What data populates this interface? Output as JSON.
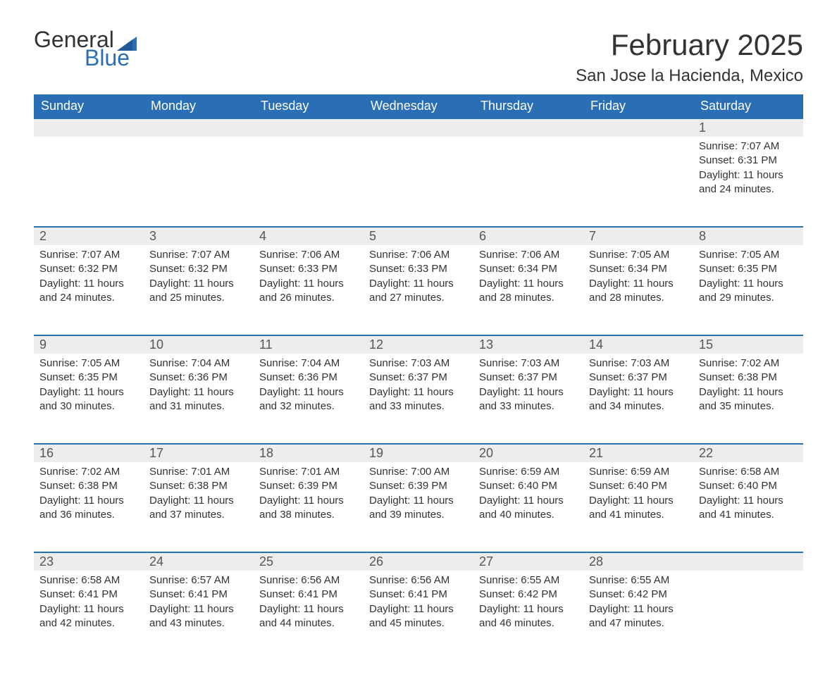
{
  "logo": {
    "text_general": "General",
    "text_blue": "Blue",
    "flag_color": "#2a6fb5"
  },
  "title": "February 2025",
  "location": "San Jose la Hacienda, Mexico",
  "colors": {
    "header_bg": "#2a6fb5",
    "header_text": "#ffffff",
    "daynum_bg": "#ededed",
    "row_border": "#2a6fb5",
    "body_text": "#333333"
  },
  "weekdays": [
    "Sunday",
    "Monday",
    "Tuesday",
    "Wednesday",
    "Thursday",
    "Friday",
    "Saturday"
  ],
  "labels": {
    "sunrise": "Sunrise: ",
    "sunset": "Sunset: ",
    "daylight": "Daylight: "
  },
  "weeks": [
    [
      null,
      null,
      null,
      null,
      null,
      null,
      {
        "n": "1",
        "sunrise": "7:07 AM",
        "sunset": "6:31 PM",
        "daylight": "11 hours and 24 minutes."
      }
    ],
    [
      {
        "n": "2",
        "sunrise": "7:07 AM",
        "sunset": "6:32 PM",
        "daylight": "11 hours and 24 minutes."
      },
      {
        "n": "3",
        "sunrise": "7:07 AM",
        "sunset": "6:32 PM",
        "daylight": "11 hours and 25 minutes."
      },
      {
        "n": "4",
        "sunrise": "7:06 AM",
        "sunset": "6:33 PM",
        "daylight": "11 hours and 26 minutes."
      },
      {
        "n": "5",
        "sunrise": "7:06 AM",
        "sunset": "6:33 PM",
        "daylight": "11 hours and 27 minutes."
      },
      {
        "n": "6",
        "sunrise": "7:06 AM",
        "sunset": "6:34 PM",
        "daylight": "11 hours and 28 minutes."
      },
      {
        "n": "7",
        "sunrise": "7:05 AM",
        "sunset": "6:34 PM",
        "daylight": "11 hours and 28 minutes."
      },
      {
        "n": "8",
        "sunrise": "7:05 AM",
        "sunset": "6:35 PM",
        "daylight": "11 hours and 29 minutes."
      }
    ],
    [
      {
        "n": "9",
        "sunrise": "7:05 AM",
        "sunset": "6:35 PM",
        "daylight": "11 hours and 30 minutes."
      },
      {
        "n": "10",
        "sunrise": "7:04 AM",
        "sunset": "6:36 PM",
        "daylight": "11 hours and 31 minutes."
      },
      {
        "n": "11",
        "sunrise": "7:04 AM",
        "sunset": "6:36 PM",
        "daylight": "11 hours and 32 minutes."
      },
      {
        "n": "12",
        "sunrise": "7:03 AM",
        "sunset": "6:37 PM",
        "daylight": "11 hours and 33 minutes."
      },
      {
        "n": "13",
        "sunrise": "7:03 AM",
        "sunset": "6:37 PM",
        "daylight": "11 hours and 33 minutes."
      },
      {
        "n": "14",
        "sunrise": "7:03 AM",
        "sunset": "6:37 PM",
        "daylight": "11 hours and 34 minutes."
      },
      {
        "n": "15",
        "sunrise": "7:02 AM",
        "sunset": "6:38 PM",
        "daylight": "11 hours and 35 minutes."
      }
    ],
    [
      {
        "n": "16",
        "sunrise": "7:02 AM",
        "sunset": "6:38 PM",
        "daylight": "11 hours and 36 minutes."
      },
      {
        "n": "17",
        "sunrise": "7:01 AM",
        "sunset": "6:38 PM",
        "daylight": "11 hours and 37 minutes."
      },
      {
        "n": "18",
        "sunrise": "7:01 AM",
        "sunset": "6:39 PM",
        "daylight": "11 hours and 38 minutes."
      },
      {
        "n": "19",
        "sunrise": "7:00 AM",
        "sunset": "6:39 PM",
        "daylight": "11 hours and 39 minutes."
      },
      {
        "n": "20",
        "sunrise": "6:59 AM",
        "sunset": "6:40 PM",
        "daylight": "11 hours and 40 minutes."
      },
      {
        "n": "21",
        "sunrise": "6:59 AM",
        "sunset": "6:40 PM",
        "daylight": "11 hours and 41 minutes."
      },
      {
        "n": "22",
        "sunrise": "6:58 AM",
        "sunset": "6:40 PM",
        "daylight": "11 hours and 41 minutes."
      }
    ],
    [
      {
        "n": "23",
        "sunrise": "6:58 AM",
        "sunset": "6:41 PM",
        "daylight": "11 hours and 42 minutes."
      },
      {
        "n": "24",
        "sunrise": "6:57 AM",
        "sunset": "6:41 PM",
        "daylight": "11 hours and 43 minutes."
      },
      {
        "n": "25",
        "sunrise": "6:56 AM",
        "sunset": "6:41 PM",
        "daylight": "11 hours and 44 minutes."
      },
      {
        "n": "26",
        "sunrise": "6:56 AM",
        "sunset": "6:41 PM",
        "daylight": "11 hours and 45 minutes."
      },
      {
        "n": "27",
        "sunrise": "6:55 AM",
        "sunset": "6:42 PM",
        "daylight": "11 hours and 46 minutes."
      },
      {
        "n": "28",
        "sunrise": "6:55 AM",
        "sunset": "6:42 PM",
        "daylight": "11 hours and 47 minutes."
      },
      null
    ]
  ]
}
